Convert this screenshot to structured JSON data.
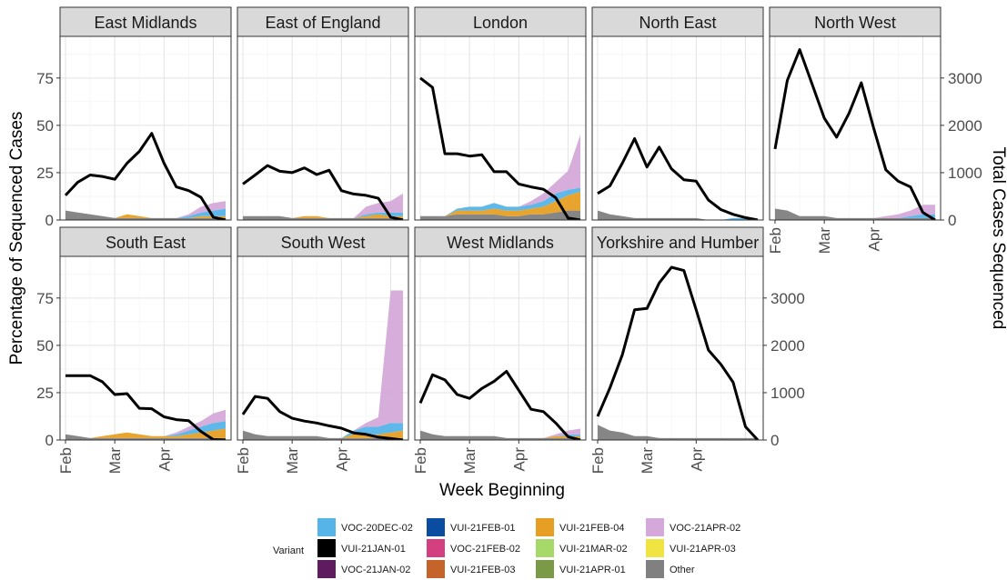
{
  "chart_data": {
    "type": "area",
    "description_of_layout": "",
    "xlabel": "Week Beginning",
    "ylabel": "Percentage of Sequenced Cases",
    "y2label": "Total Cases Sequenced",
    "ylim": [
      0,
      97
    ],
    "y2lim": [
      0,
      3880
    ],
    "x_tick_labels": [
      "Feb",
      "Mar",
      "Apr"
    ],
    "y_tick_labels": [
      "0",
      "25",
      "50",
      "75"
    ],
    "y2_tick_labels": [
      "0",
      "1000",
      "2000",
      "3000"
    ],
    "legend": {
      "title": "Variant",
      "items": [
        {
          "label": "VOC-20DEC-02",
          "color": "#56B4E9"
        },
        {
          "label": "VUI-21JAN-01",
          "color": "#000000"
        },
        {
          "label": "VOC-21JAN-02",
          "color": "#5E1C5E"
        },
        {
          "label": "VUI-21FEB-01",
          "color": "#0A4DA0"
        },
        {
          "label": "VOC-21FEB-02",
          "color": "#D43F7F"
        },
        {
          "label": "VUI-21FEB-03",
          "color": "#C4642A"
        },
        {
          "label": "VUI-21FEB-04",
          "color": "#E69F24"
        },
        {
          "label": "VUI-21MAR-02",
          "color": "#A6D96A"
        },
        {
          "label": "VUI-21APR-01",
          "color": "#7A9A48"
        },
        {
          "label": "VOC-21APR-02",
          "color": "#D4A9D9"
        },
        {
          "label": "VUI-21APR-03",
          "color": "#F0E442"
        },
        {
          "label": "Other",
          "color": "#808080"
        }
      ]
    },
    "panels": [
      {
        "name": "East Midlands",
        "other": [
          5,
          4,
          3,
          2,
          1,
          1,
          1,
          1,
          1,
          1,
          1,
          1,
          1,
          1
        ],
        "voc20": [
          0,
          0,
          0,
          0,
          0,
          0,
          0,
          0,
          0,
          0,
          1,
          2,
          3,
          4
        ],
        "orange": [
          0,
          0,
          0,
          0,
          0,
          2,
          1,
          0,
          0,
          0,
          0,
          1,
          1,
          1
        ],
        "apr02": [
          0,
          0,
          0,
          0,
          0,
          0,
          0,
          0,
          0,
          0,
          1,
          3,
          4,
          4
        ],
        "total": [
          520,
          800,
          950,
          920,
          860,
          1200,
          1450,
          1830,
          1200,
          700,
          620,
          480,
          60,
          0
        ]
      },
      {
        "name": "East of England",
        "other": [
          2,
          2,
          2,
          2,
          1,
          1,
          1,
          1,
          1,
          1,
          1,
          1,
          1,
          1
        ],
        "voc20": [
          0,
          0,
          0,
          0,
          0,
          0,
          0,
          0,
          0,
          0,
          1,
          1,
          2,
          2
        ],
        "orange": [
          0,
          0,
          0,
          0,
          0,
          1,
          1,
          0,
          0,
          0,
          1,
          2,
          1,
          1
        ],
        "apr02": [
          0,
          0,
          0,
          0,
          0,
          0,
          0,
          0,
          0,
          0,
          4,
          5,
          6,
          10
        ],
        "total": [
          760,
          950,
          1150,
          1030,
          1000,
          1100,
          960,
          1050,
          620,
          550,
          520,
          460,
          60,
          0
        ]
      },
      {
        "name": "London",
        "other": [
          2,
          2,
          2,
          3,
          3,
          3,
          3,
          2,
          2,
          3,
          3,
          4,
          5,
          5
        ],
        "voc20": [
          0,
          0,
          0,
          1,
          2,
          2,
          3,
          2,
          2,
          2,
          3,
          4,
          3,
          2
        ],
        "orange": [
          0,
          0,
          0,
          2,
          2,
          2,
          3,
          3,
          3,
          3,
          4,
          6,
          8,
          10
        ],
        "apr02": [
          0,
          0,
          0,
          0,
          0,
          0,
          0,
          0,
          0,
          2,
          4,
          6,
          10,
          28
        ],
        "total": [
          3000,
          2800,
          1400,
          1400,
          1350,
          1380,
          1020,
          1020,
          760,
          700,
          650,
          470,
          40,
          0
        ]
      },
      {
        "name": "North East",
        "other": [
          5,
          3,
          2,
          1,
          1,
          1,
          1,
          1,
          1,
          0,
          0,
          0,
          0,
          0
        ],
        "voc20": [
          0,
          0,
          0,
          0,
          0,
          0,
          0,
          0,
          0,
          0,
          0,
          1,
          1,
          0
        ],
        "orange": [
          0,
          0,
          0,
          0,
          0,
          0,
          0,
          0,
          0,
          0,
          0,
          0,
          0,
          0
        ],
        "apr02": [
          0,
          0,
          0,
          0,
          0,
          0,
          0,
          0,
          0,
          0,
          0,
          0,
          0,
          0
        ],
        "total": [
          560,
          720,
          1200,
          1720,
          1120,
          1540,
          1080,
          850,
          820,
          420,
          220,
          120,
          50,
          0
        ]
      },
      {
        "name": "North West",
        "other": [
          6,
          5,
          2,
          2,
          2,
          1,
          1,
          1,
          1,
          1,
          1,
          1,
          1,
          1
        ],
        "voc20": [
          0,
          0,
          0,
          0,
          0,
          0,
          0,
          0,
          0,
          0,
          0,
          1,
          2,
          2
        ],
        "orange": [
          0,
          0,
          0,
          0,
          0,
          0,
          0,
          0,
          0,
          0,
          0,
          0,
          0,
          0
        ],
        "apr02": [
          0,
          0,
          0,
          0,
          0,
          0,
          0,
          0,
          0,
          1,
          2,
          3,
          5,
          5
        ],
        "total": [
          1500,
          2950,
          3600,
          2880,
          2150,
          1750,
          2250,
          2900,
          1950,
          1060,
          820,
          700,
          160,
          0
        ]
      },
      {
        "name": "South East",
        "other": [
          3,
          2,
          1,
          1,
          1,
          1,
          1,
          1,
          1,
          1,
          1,
          1,
          1,
          1
        ],
        "voc20": [
          0,
          0,
          0,
          0,
          0,
          0,
          0,
          0,
          0,
          1,
          2,
          3,
          4,
          4
        ],
        "orange": [
          0,
          0,
          0,
          1,
          2,
          3,
          2,
          1,
          1,
          1,
          2,
          3,
          4,
          5
        ],
        "apr02": [
          0,
          0,
          0,
          0,
          0,
          0,
          0,
          0,
          0,
          1,
          2,
          3,
          5,
          6
        ],
        "total": [
          1360,
          1360,
          1360,
          1230,
          960,
          980,
          670,
          660,
          490,
          430,
          410,
          180,
          10,
          0
        ]
      },
      {
        "name": "South West",
        "other": [
          5,
          3,
          2,
          2,
          2,
          2,
          2,
          1,
          1,
          1,
          1,
          1,
          1,
          1
        ],
        "voc20": [
          0,
          0,
          0,
          0,
          0,
          0,
          0,
          0,
          0,
          2,
          4,
          4,
          5,
          4
        ],
        "orange": [
          0,
          0,
          0,
          0,
          0,
          0,
          0,
          0,
          0,
          2,
          2,
          2,
          3,
          4
        ],
        "apr02": [
          0,
          0,
          0,
          0,
          0,
          0,
          0,
          0,
          0,
          0,
          2,
          5,
          70,
          70
        ],
        "total": [
          540,
          920,
          880,
          600,
          460,
          400,
          360,
          300,
          250,
          150,
          120,
          60,
          30,
          0
        ]
      },
      {
        "name": "West Midlands",
        "other": [
          5,
          3,
          2,
          2,
          2,
          2,
          2,
          1,
          1,
          1,
          1,
          1,
          1,
          1
        ],
        "voc20": [
          0,
          0,
          0,
          0,
          0,
          0,
          0,
          0,
          0,
          0,
          0,
          0,
          1,
          1
        ],
        "orange": [
          0,
          0,
          0,
          0,
          0,
          0,
          0,
          0,
          0,
          0,
          0,
          1,
          1,
          1
        ],
        "apr02": [
          0,
          0,
          0,
          0,
          0,
          0,
          0,
          0,
          0,
          0,
          0,
          1,
          2,
          3
        ],
        "total": [
          780,
          1380,
          1270,
          960,
          880,
          1090,
          1240,
          1450,
          1050,
          650,
          600,
          360,
          70,
          0
        ]
      },
      {
        "name": "Yorkshire and Humber",
        "other": [
          8,
          5,
          4,
          2,
          2,
          1,
          1,
          1,
          1,
          1,
          1,
          1,
          1,
          1
        ],
        "voc20": [
          0,
          0,
          0,
          0,
          0,
          0,
          0,
          0,
          0,
          0,
          0,
          0,
          0,
          0
        ],
        "orange": [
          0,
          0,
          0,
          0,
          0,
          0,
          0,
          0,
          0,
          0,
          0,
          0,
          0,
          0
        ],
        "apr02": [
          0,
          0,
          0,
          0,
          0,
          0,
          0,
          0,
          0,
          0,
          0,
          0,
          0,
          0
        ],
        "total": [
          500,
          1100,
          1800,
          2750,
          2780,
          3320,
          3650,
          3580,
          2750,
          1900,
          1600,
          1220,
          280,
          0
        ]
      }
    ]
  }
}
